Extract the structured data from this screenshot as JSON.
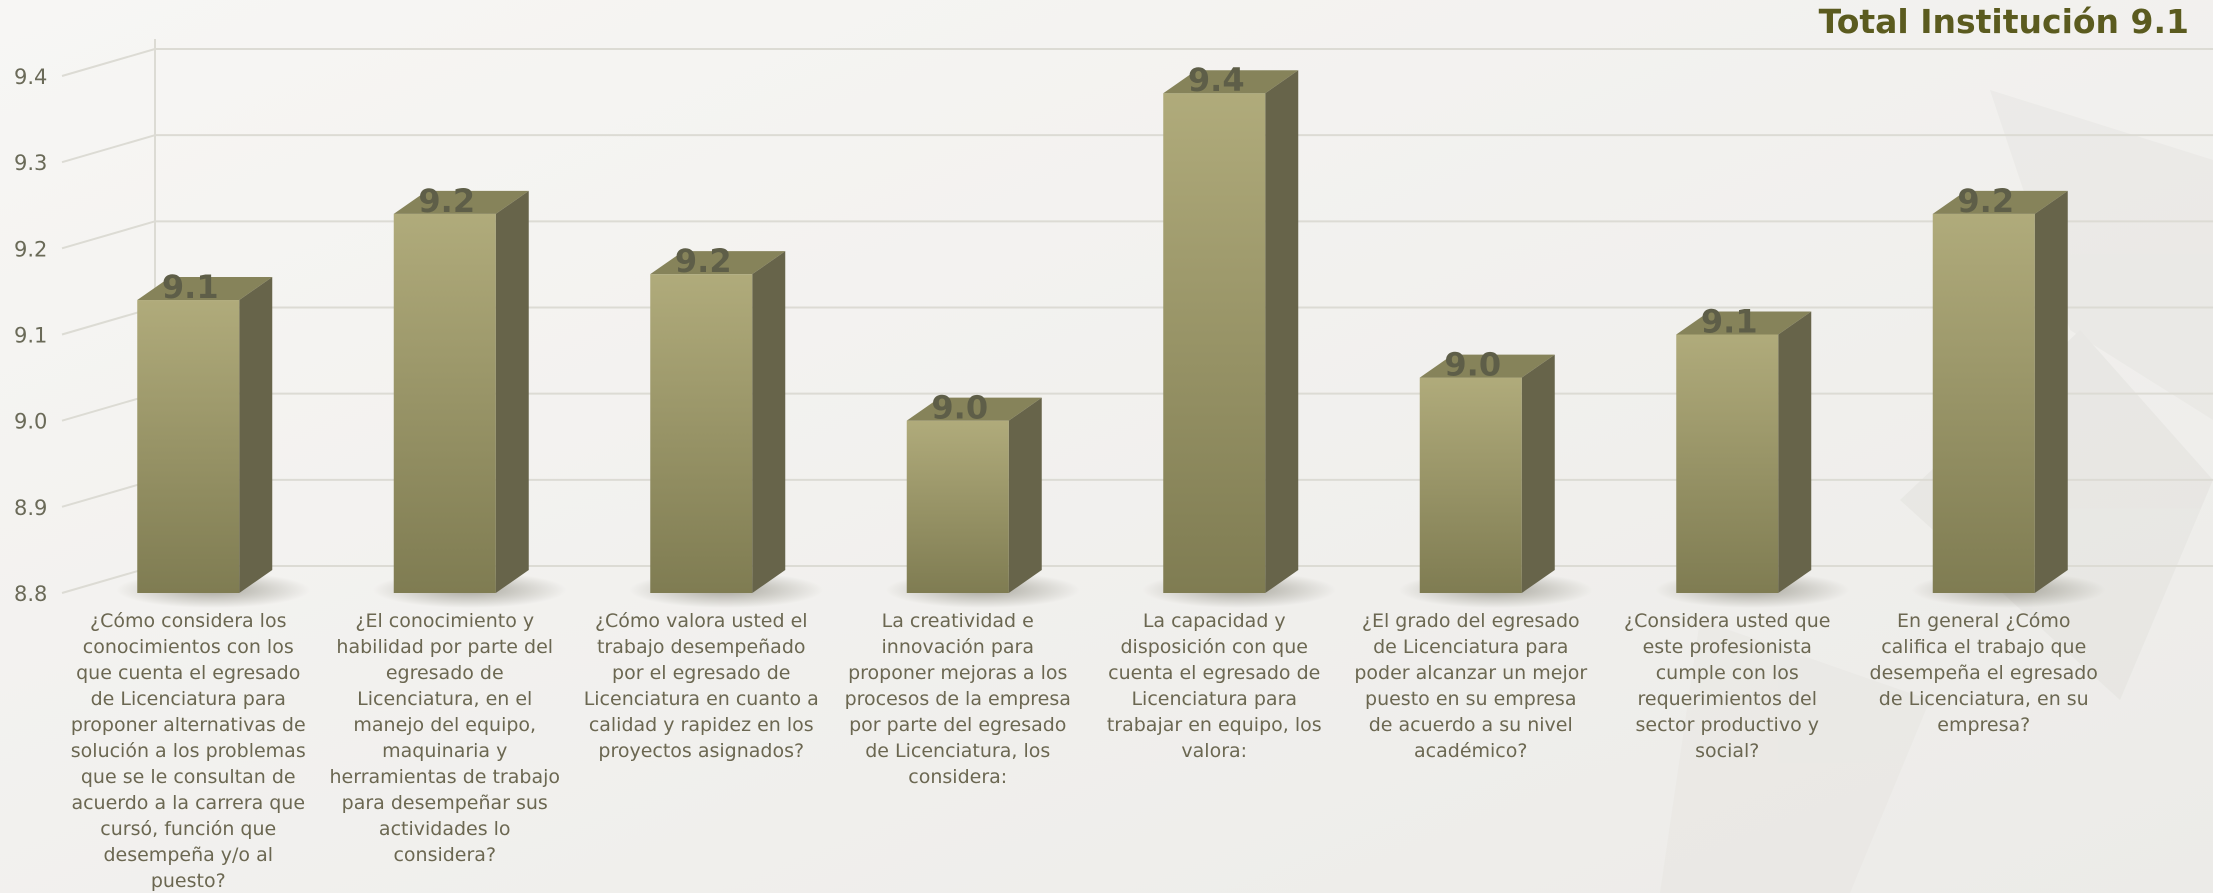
{
  "title": "Total Institución 9.1",
  "colors": {
    "bar_front_light": "#b0ab7b",
    "bar_front_dark": "#7f7c52",
    "bar_top": "#86835a",
    "bar_side": "#67644a",
    "title": "#5b5b1f",
    "text": "#6b6751"
  },
  "chart_data": {
    "type": "bar",
    "style": "3d-column",
    "title": "Total Institución 9.1",
    "ylim": [
      8.8,
      9.4
    ],
    "yticks": [
      "8.8",
      "8.9",
      "9.0",
      "9.1",
      "9.2",
      "9.3",
      "9.4"
    ],
    "grid": true,
    "legend": "none",
    "categories": [
      "¿Cómo considera los conocimientos con los que cuenta el egresado de Licenciatura  para proponer alternativas de solución a los problemas que se le consultan de acuerdo a la carrera que cursó, función que desempeña y/o  al puesto?",
      "¿El conocimiento y habilidad por parte del egresado de Licenciatura, en el manejo del equipo, maquinaria y herramientas de trabajo para desempeñar sus actividades lo considera?",
      "¿Cómo valora usted el trabajo desempeñado por el  egresado de Licenciatura en cuanto a calidad y rapidez en los proyectos asignados?",
      "La creatividad e innovación para proponer mejoras a los procesos de la empresa por parte del  egresado de  Licenciatura, los considera:",
      "La capacidad y disposición con que cuenta el  egresado de Licenciatura para trabajar en equipo, los valora:",
      "¿El grado del  egresado de  Licenciatura para poder alcanzar un mejor puesto en su empresa de acuerdo a su nivel académico?",
      "¿Considera usted que este profesionista cumple con los requerimientos del sector  productivo y social?",
      "En general ¿Cómo califica el trabajo que desempeña el  egresado de  Licenciatura, en su empresa?"
    ],
    "values": [
      9.14,
      9.24,
      9.17,
      9.0,
      9.38,
      9.05,
      9.1,
      9.24
    ],
    "data_labels": [
      "9.1",
      "9.2",
      "9.2",
      "9.0",
      "9.4",
      "9.0",
      "9.1",
      "9.2"
    ]
  }
}
